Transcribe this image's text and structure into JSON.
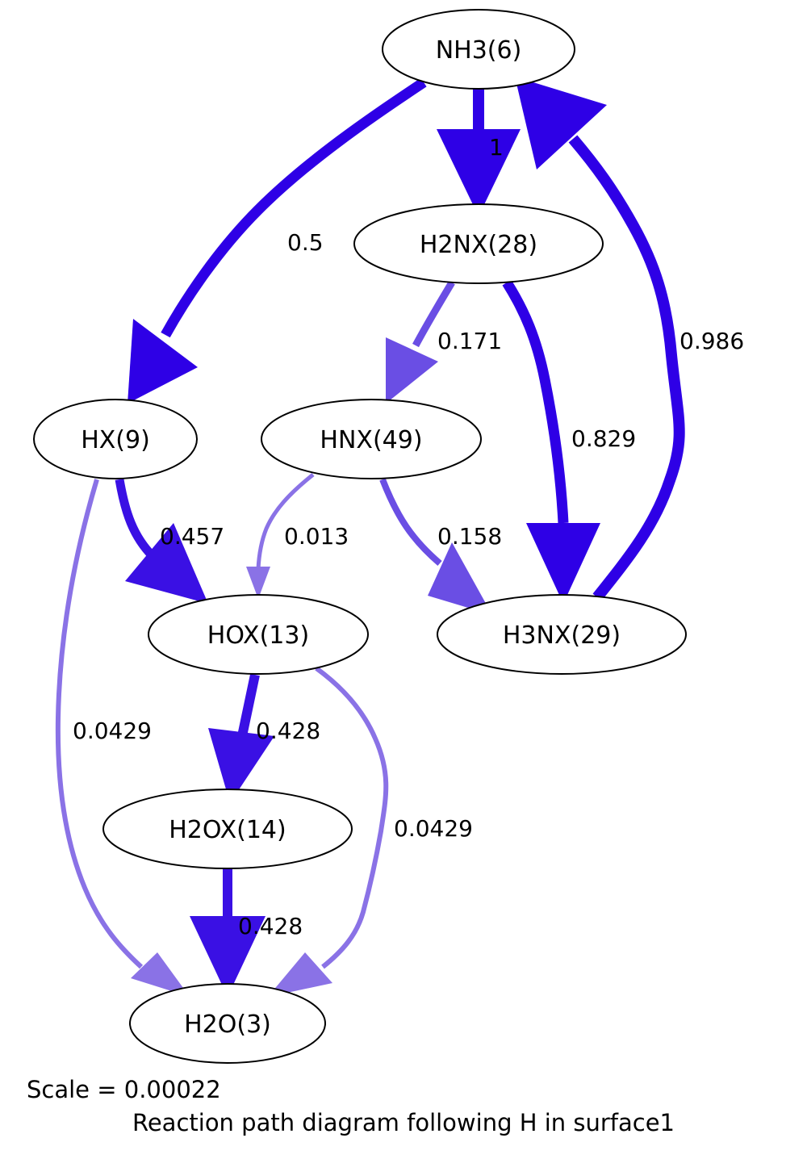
{
  "nodes": {
    "nh3": "NH3(6)",
    "h2nx": "H2NX(28)",
    "hx": "HX(9)",
    "hnx": "HNX(49)",
    "hox": "HOX(13)",
    "h3nx": "H3NX(29)",
    "h2ox": "H2OX(14)",
    "h2o": "H2O(3)"
  },
  "edges": {
    "nh3_h2nx": "1",
    "nh3_hx": "0.5",
    "h2nx_hnx": "0.171",
    "h3nx_nh3": "0.986",
    "h2nx_h3nx": "0.829",
    "hx_hox": "0.457",
    "hnx_hox": "0.013",
    "hnx_h3nx": "0.158",
    "hx_h2o": "0.0429",
    "hox_h2ox": "0.428",
    "hox_h2o": "0.0429",
    "h2ox_h2o": "0.428"
  },
  "colors": {
    "strong": "#2e00e6",
    "medium": "#6a4ee4",
    "weak": "#8a72e6"
  },
  "caption": {
    "scale": "Scale = 0.00022",
    "title": "Reaction path diagram following H in surface1"
  }
}
